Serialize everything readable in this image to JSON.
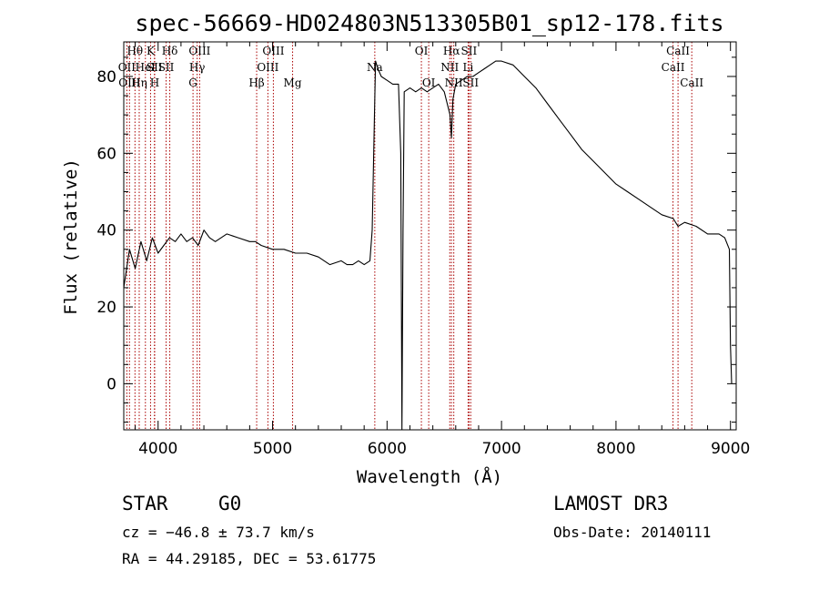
{
  "chart_data": {
    "type": "line",
    "title": "spec-56669-HD024803N513305B01_sp12-178.fits",
    "xlabel": "Wavelength (Å)",
    "ylabel": "Flux (relative)",
    "xlim": [
      3700,
      9050
    ],
    "ylim": [
      -12,
      89
    ],
    "x_ticks": [
      4000,
      5000,
      6000,
      7000,
      8000,
      9000
    ],
    "x_tick_labels": [
      "4000",
      "5000",
      "6000",
      "7000",
      "8000",
      "9000"
    ],
    "y_ticks": [
      0,
      20,
      40,
      60,
      80
    ],
    "y_tick_labels": [
      "0",
      "20",
      "40",
      "60",
      "80"
    ],
    "series": [
      {
        "name": "spectrum",
        "color": "#000000",
        "x": [
          3700,
          3750,
          3800,
          3850,
          3900,
          3950,
          4000,
          4050,
          4100,
          4150,
          4200,
          4250,
          4300,
          4350,
          4400,
          4450,
          4500,
          4600,
          4700,
          4800,
          4850,
          4900,
          5000,
          5100,
          5200,
          5300,
          5400,
          5500,
          5600,
          5650,
          5700,
          5750,
          5800,
          5850,
          5870,
          5890,
          5900,
          5920,
          5950,
          6000,
          6050,
          6100,
          6120,
          6130,
          6140,
          6150,
          6200,
          6250,
          6300,
          6350,
          6400,
          6450,
          6500,
          6550,
          6563,
          6575,
          6600,
          6650,
          6700,
          6750,
          6800,
          6850,
          6900,
          6950,
          7000,
          7100,
          7200,
          7300,
          7400,
          7500,
          7600,
          7700,
          7800,
          7900,
          8000,
          8100,
          8200,
          8300,
          8400,
          8500,
          8542,
          8600,
          8700,
          8800,
          8900,
          8950,
          8990,
          9000,
          9010
        ],
        "y": [
          25,
          35,
          30,
          37,
          32,
          38,
          34,
          36,
          38,
          37,
          39,
          37,
          38,
          36,
          40,
          38,
          37,
          39,
          38,
          37,
          37,
          36,
          35,
          35,
          34,
          34,
          33,
          31,
          32,
          31,
          31,
          32,
          31,
          32,
          40,
          70,
          84,
          82,
          80,
          79,
          78,
          78,
          60,
          -12,
          40,
          76,
          77,
          76,
          77,
          76,
          77,
          78,
          76,
          70,
          64,
          74,
          78,
          79,
          80,
          80,
          81,
          82,
          83,
          84,
          84,
          83,
          80,
          77,
          73,
          69,
          65,
          61,
          58,
          55,
          52,
          50,
          48,
          46,
          44,
          43,
          41,
          42,
          41,
          39,
          39,
          38,
          35,
          10,
          0
        ]
      }
    ],
    "spectral_lines": [
      {
        "label": "Hθ",
        "x": 3798,
        "row": 1,
        "color": "#aa0000"
      },
      {
        "label": "OII",
        "x": 3727,
        "row": 2,
        "color": "#aa0000"
      },
      {
        "label": "OIII",
        "x": 3750,
        "row": 3,
        "color": "#aa0000"
      },
      {
        "label": "Hη",
        "x": 3835,
        "row": 3,
        "color": "#aa0000"
      },
      {
        "label": "HeI",
        "x": 3889,
        "row": 2,
        "color": "#aa0000"
      },
      {
        "label": "K",
        "x": 3934,
        "row": 1,
        "color": "#aa0000"
      },
      {
        "label": "SII",
        "x": 3968,
        "row": 2,
        "color": "#aa0000"
      },
      {
        "label": "H",
        "x": 3970,
        "row": 3,
        "color": "#aa0000"
      },
      {
        "label": "Hδ",
        "x": 4102,
        "row": 1,
        "color": "#aa0000"
      },
      {
        "label": "SII",
        "x": 4070,
        "row": 2,
        "color": "#aa0000"
      },
      {
        "label": "OIII",
        "x": 4363,
        "row": 1,
        "color": "#aa0000"
      },
      {
        "label": "Hγ",
        "x": 4341,
        "row": 2,
        "color": "#aa0000"
      },
      {
        "label": "G",
        "x": 4305,
        "row": 3,
        "color": "#aa0000"
      },
      {
        "label": "Hβ",
        "x": 4861,
        "row": 3,
        "color": "#aa0000"
      },
      {
        "label": "OIII",
        "x": 4959,
        "row": 2,
        "color": "#aa0000"
      },
      {
        "label": "OIII",
        "x": 5007,
        "row": 1,
        "color": "#aa0000"
      },
      {
        "label": "Mg",
        "x": 5175,
        "row": 3,
        "color": "#aa0000"
      },
      {
        "label": "Na",
        "x": 5893,
        "row": 2,
        "color": "#aa0000"
      },
      {
        "label": "OI",
        "x": 6300,
        "row": 1,
        "color": "#aa0000"
      },
      {
        "label": "OI",
        "x": 6364,
        "row": 3,
        "color": "#aa0000"
      },
      {
        "label": "NII",
        "x": 6548,
        "row": 2,
        "color": "#aa0000"
      },
      {
        "label": "Hα",
        "x": 6563,
        "row": 1,
        "color": "#aa0000"
      },
      {
        "label": "NII",
        "x": 6583,
        "row": 3,
        "color": "#aa0000"
      },
      {
        "label": "SII",
        "x": 6716,
        "row": 1,
        "color": "#aa0000"
      },
      {
        "label": "Li",
        "x": 6708,
        "row": 2,
        "color": "#aa0000"
      },
      {
        "label": "SII",
        "x": 6731,
        "row": 3,
        "color": "#aa0000"
      },
      {
        "label": "CaII",
        "x": 8542,
        "row": 1,
        "color": "#aa0000"
      },
      {
        "label": "CaII",
        "x": 8498,
        "row": 2,
        "color": "#aa0000"
      },
      {
        "label": "CaII",
        "x": 8662,
        "row": 3,
        "color": "#aa0000"
      }
    ]
  },
  "info": {
    "object_class": "STAR",
    "subclass": "G0",
    "survey": "LAMOST DR3",
    "cz": "cz = −46.8 ± 73.7 km/s",
    "obs_date": "Obs-Date: 20140111",
    "coords": "RA =  44.29185, DEC =  53.61775"
  }
}
